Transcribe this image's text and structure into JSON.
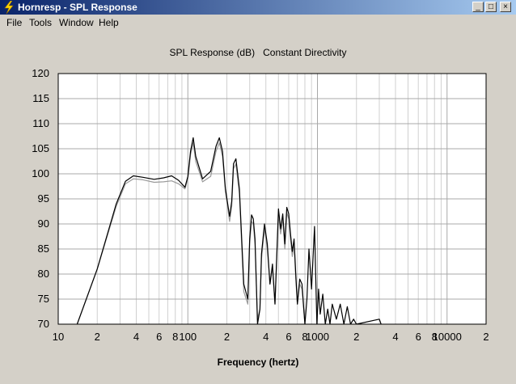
{
  "window": {
    "title": "Hornresp - SPL Response",
    "icon": "lightning-icon",
    "controls": [
      "minimize-icon",
      "maximize-icon",
      "close-icon"
    ]
  },
  "menu": {
    "items": [
      "File",
      "Tools",
      "Window",
      "Help"
    ]
  },
  "chart_data": {
    "type": "line",
    "title": "SPL Response (dB)   Constant Directivity",
    "xlabel": "Frequency (hertz)",
    "ylabel": "",
    "x_scale": "log",
    "xlim": [
      10,
      20000
    ],
    "ylim": [
      70,
      120
    ],
    "grid": true,
    "y_ticks": [
      "120",
      "115",
      "110",
      "105",
      "100",
      "95",
      "90",
      "85",
      "80",
      "75",
      "70"
    ],
    "x_tick_labels": [
      {
        "value": 10,
        "label": "10"
      },
      {
        "value": 20,
        "label": "2"
      },
      {
        "value": 40,
        "label": "4"
      },
      {
        "value": 60,
        "label": "6"
      },
      {
        "value": 80,
        "label": "8"
      },
      {
        "value": 100,
        "label": "100"
      },
      {
        "value": 200,
        "label": "2"
      },
      {
        "value": 400,
        "label": "4"
      },
      {
        "value": 600,
        "label": "6"
      },
      {
        "value": 800,
        "label": "8"
      },
      {
        "value": 1000,
        "label": "1000"
      },
      {
        "value": 2000,
        "label": "2"
      },
      {
        "value": 4000,
        "label": "4"
      },
      {
        "value": 6000,
        "label": "6"
      },
      {
        "value": 8000,
        "label": "8"
      },
      {
        "value": 10000,
        "label": "10000"
      },
      {
        "value": 20000,
        "label": "2"
      }
    ],
    "series": [
      {
        "color": "#000000",
        "x": [
          14,
          20,
          28,
          33,
          38,
          45,
          55,
          65,
          75,
          85,
          95,
          100,
          105,
          110,
          115,
          130,
          150,
          165,
          175,
          185,
          195,
          210,
          218,
          225,
          235,
          250,
          270,
          290,
          300,
          310,
          320,
          330,
          345,
          360,
          370,
          390,
          410,
          430,
          450,
          470,
          500,
          520,
          540,
          560,
          580,
          600,
          620,
          640,
          660,
          680,
          700,
          730,
          760,
          800,
          830,
          860,
          900,
          950,
          990,
          1020,
          1050,
          1100,
          1150,
          1200,
          1250,
          1300,
          1400,
          1500,
          1600,
          1700,
          1800,
          1900,
          2000,
          3000,
          3100
        ],
        "y": [
          70,
          81,
          94,
          98.5,
          99.6,
          99.3,
          98.9,
          99.2,
          99.6,
          98.7,
          97.3,
          99.5,
          104.5,
          107.2,
          103.5,
          99,
          100.5,
          105.5,
          107.2,
          104.5,
          97,
          91.5,
          94.5,
          102,
          103,
          97,
          78,
          75,
          87,
          91.8,
          91,
          87,
          70,
          73,
          84,
          90,
          86,
          78,
          82,
          74,
          93,
          89,
          92,
          86,
          93.3,
          92,
          88,
          84.5,
          87,
          80,
          74,
          79,
          78,
          70,
          75,
          85,
          77,
          89.5,
          70,
          77,
          72,
          76,
          70,
          73,
          70,
          74,
          71,
          74,
          70,
          73.5,
          70,
          71,
          70,
          71,
          70
        ]
      },
      {
        "color": "#9a9a9a",
        "x": [
          14,
          20,
          28,
          33,
          38,
          45,
          55,
          65,
          75,
          85,
          95,
          100,
          105,
          110,
          115,
          130,
          150,
          165,
          175,
          185,
          195,
          210,
          218,
          225,
          235,
          250,
          270,
          290,
          300,
          310,
          320,
          330,
          345,
          360,
          370,
          390,
          410,
          430,
          450,
          470,
          500,
          520,
          540,
          560,
          580,
          600,
          620,
          640,
          660,
          680,
          700,
          730,
          760,
          800
        ],
        "y": [
          70,
          81,
          93.5,
          98,
          99,
          98.8,
          98.3,
          98.4,
          98.6,
          98,
          97,
          99,
          103.8,
          106.2,
          102.5,
          98.4,
          99.5,
          104.5,
          106.2,
          103.5,
          96.5,
          90.5,
          93.5,
          101,
          102,
          96,
          76.5,
          74,
          86,
          90.5,
          90,
          86,
          71,
          73,
          83,
          89,
          85,
          78,
          81,
          74,
          92,
          88,
          91,
          85,
          92.3,
          91,
          87,
          83.5,
          86,
          79,
          74,
          78,
          77,
          70
        ]
      }
    ]
  }
}
